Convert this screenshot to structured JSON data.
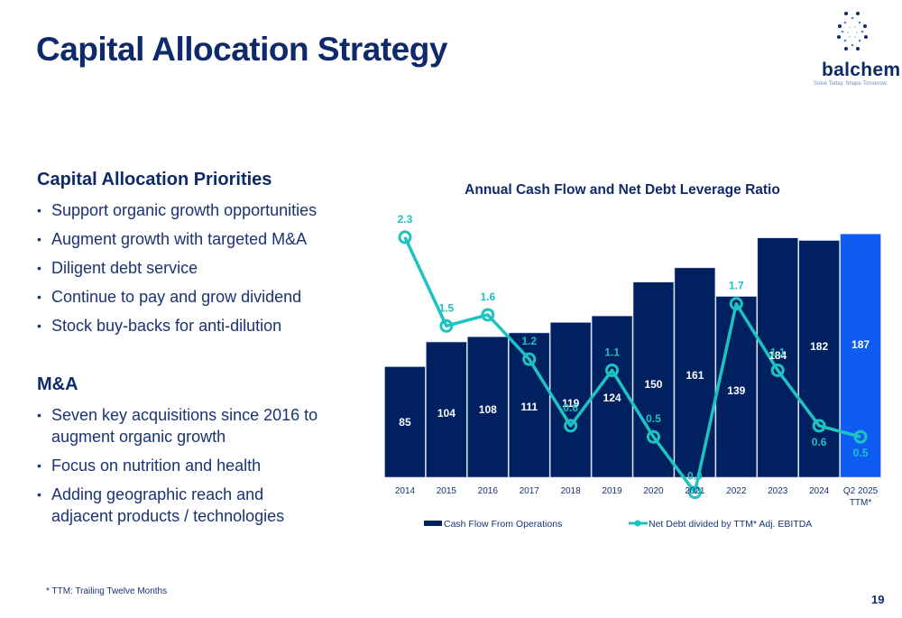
{
  "slide": {
    "title": "Capital Allocation Strategy",
    "page_number": "19",
    "footnote": "* TTM: Trailing Twelve Months"
  },
  "logo": {
    "name": "balchem",
    "tagline": "Solve Today. Shape Tomorrow."
  },
  "priorities": {
    "heading": "Capital Allocation Priorities",
    "items": [
      "Support organic growth opportunities",
      "Augment growth with targeted M&A",
      "Diligent debt service",
      "Continue to pay and grow dividend",
      "Stock buy-backs for anti-dilution"
    ]
  },
  "ma": {
    "heading": "M&A",
    "items": [
      "Seven key acquisitions since 2016 to augment organic growth",
      "Focus on nutrition and health",
      "Adding geographic reach and adjacent products / technologies"
    ]
  },
  "colors": {
    "navy": "#0f2a6b",
    "bar": "#002060",
    "bar_highlight": "#0f5cf2",
    "line": "#1cc3c0"
  },
  "chart_data": {
    "type": "bar",
    "title": "Annual Cash Flow and Net Debt Leverage Ratio",
    "categories": [
      "2014",
      "2015",
      "2016",
      "2017",
      "2018",
      "2019",
      "2020",
      "2021",
      "2022",
      "2023",
      "2024",
      "Q2 2025\nTTM*"
    ],
    "series": [
      {
        "name": "Cash Flow From Operations",
        "kind": "bar",
        "values": [
          85,
          104,
          108,
          111,
          119,
          124,
          150,
          161,
          139,
          184,
          182,
          187
        ],
        "highlight_last": true
      },
      {
        "name": "Net Debt divided by TTM* Adj. EBITDA",
        "kind": "line",
        "values": [
          2.3,
          1.5,
          1.6,
          1.2,
          0.6,
          1.1,
          0.5,
          0.0,
          1.7,
          1.1,
          0.6,
          0.5
        ]
      }
    ],
    "ylim_bars": [
      0,
      190
    ],
    "ylim_line": [
      -0.1,
      2.6
    ],
    "legend": "bottom",
    "grid": false,
    "xlabel": "",
    "ylabel": ""
  }
}
